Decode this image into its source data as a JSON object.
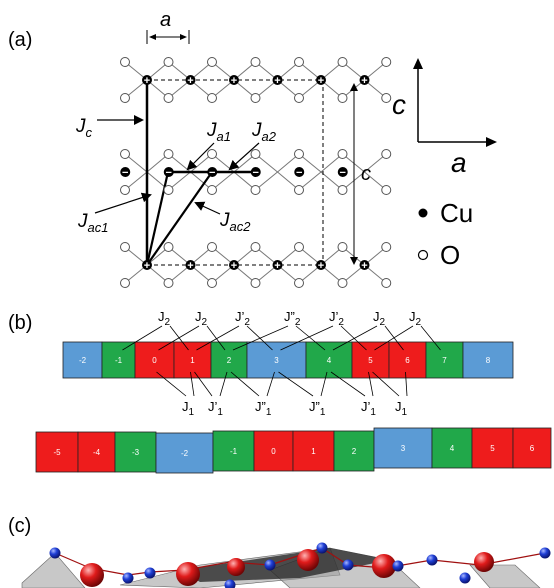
{
  "panel_a": {
    "label": "(a)",
    "dim_a": "a",
    "dim_c": "c",
    "couplings": [
      {
        "base": "J",
        "sub": "c"
      },
      {
        "base": "J",
        "sub": "a1"
      },
      {
        "base": "J",
        "sub": "a2"
      },
      {
        "base": "J",
        "sub": "ac1"
      },
      {
        "base": "J",
        "sub": "ac2"
      }
    ],
    "axes": {
      "vertical": "c",
      "horizontal": "a"
    },
    "legend": {
      "cu": "Cu",
      "o": "O"
    },
    "charges": {
      "top": "+",
      "middle": "−",
      "bottom": "+"
    }
  },
  "panel_b": {
    "label": "(b)",
    "row1": {
      "blocks": [
        {
          "n": "-2",
          "color": "blue"
        },
        {
          "n": "-1",
          "color": "green"
        },
        {
          "n": "0",
          "color": "red"
        },
        {
          "n": "1",
          "color": "red"
        },
        {
          "n": "2",
          "color": "green"
        },
        {
          "n": "3",
          "color": "blue"
        },
        {
          "n": "4",
          "color": "green"
        },
        {
          "n": "5",
          "color": "red"
        },
        {
          "n": "6",
          "color": "red"
        },
        {
          "n": "7",
          "color": "green"
        },
        {
          "n": "8",
          "color": "blue"
        }
      ],
      "top_labels": [
        {
          "base": "J",
          "prime": "",
          "sub": "2"
        },
        {
          "base": "J",
          "prime": "",
          "sub": "2"
        },
        {
          "base": "J",
          "prime": "’",
          "sub": "2"
        },
        {
          "base": "J",
          "prime": "”",
          "sub": "2"
        },
        {
          "base": "J",
          "prime": "’",
          "sub": "2"
        },
        {
          "base": "J",
          "prime": "",
          "sub": "2"
        },
        {
          "base": "J",
          "prime": "",
          "sub": "2"
        }
      ],
      "bottom_labels": [
        {
          "base": "J",
          "prime": "",
          "sub": "1"
        },
        {
          "base": "J",
          "prime": "’",
          "sub": "1"
        },
        {
          "base": "J",
          "prime": "”",
          "sub": "1"
        },
        {
          "base": "J",
          "prime": "”",
          "sub": "1"
        },
        {
          "base": "J",
          "prime": "’",
          "sub": "1"
        },
        {
          "base": "J",
          "prime": "",
          "sub": "1"
        }
      ]
    },
    "row2": {
      "blocks": [
        {
          "n": "-5",
          "color": "red"
        },
        {
          "n": "-4",
          "color": "red"
        },
        {
          "n": "-3",
          "color": "green"
        },
        {
          "n": "-2",
          "color": "blue"
        },
        {
          "n": "-1",
          "color": "green"
        },
        {
          "n": "0",
          "color": "red"
        },
        {
          "n": "1",
          "color": "red"
        },
        {
          "n": "2",
          "color": "green"
        },
        {
          "n": "3",
          "color": "blue"
        },
        {
          "n": "4",
          "color": "green"
        },
        {
          "n": "5",
          "color": "red"
        },
        {
          "n": "6",
          "color": "red"
        }
      ]
    }
  },
  "panel_c": {
    "label": "(c)"
  },
  "colors": {
    "red": "#ee1c1c",
    "green": "#21a84a",
    "blue": "#5b9bd5",
    "cu_sphere": "#d91f1f",
    "o_sphere": "#1f3fd6"
  }
}
